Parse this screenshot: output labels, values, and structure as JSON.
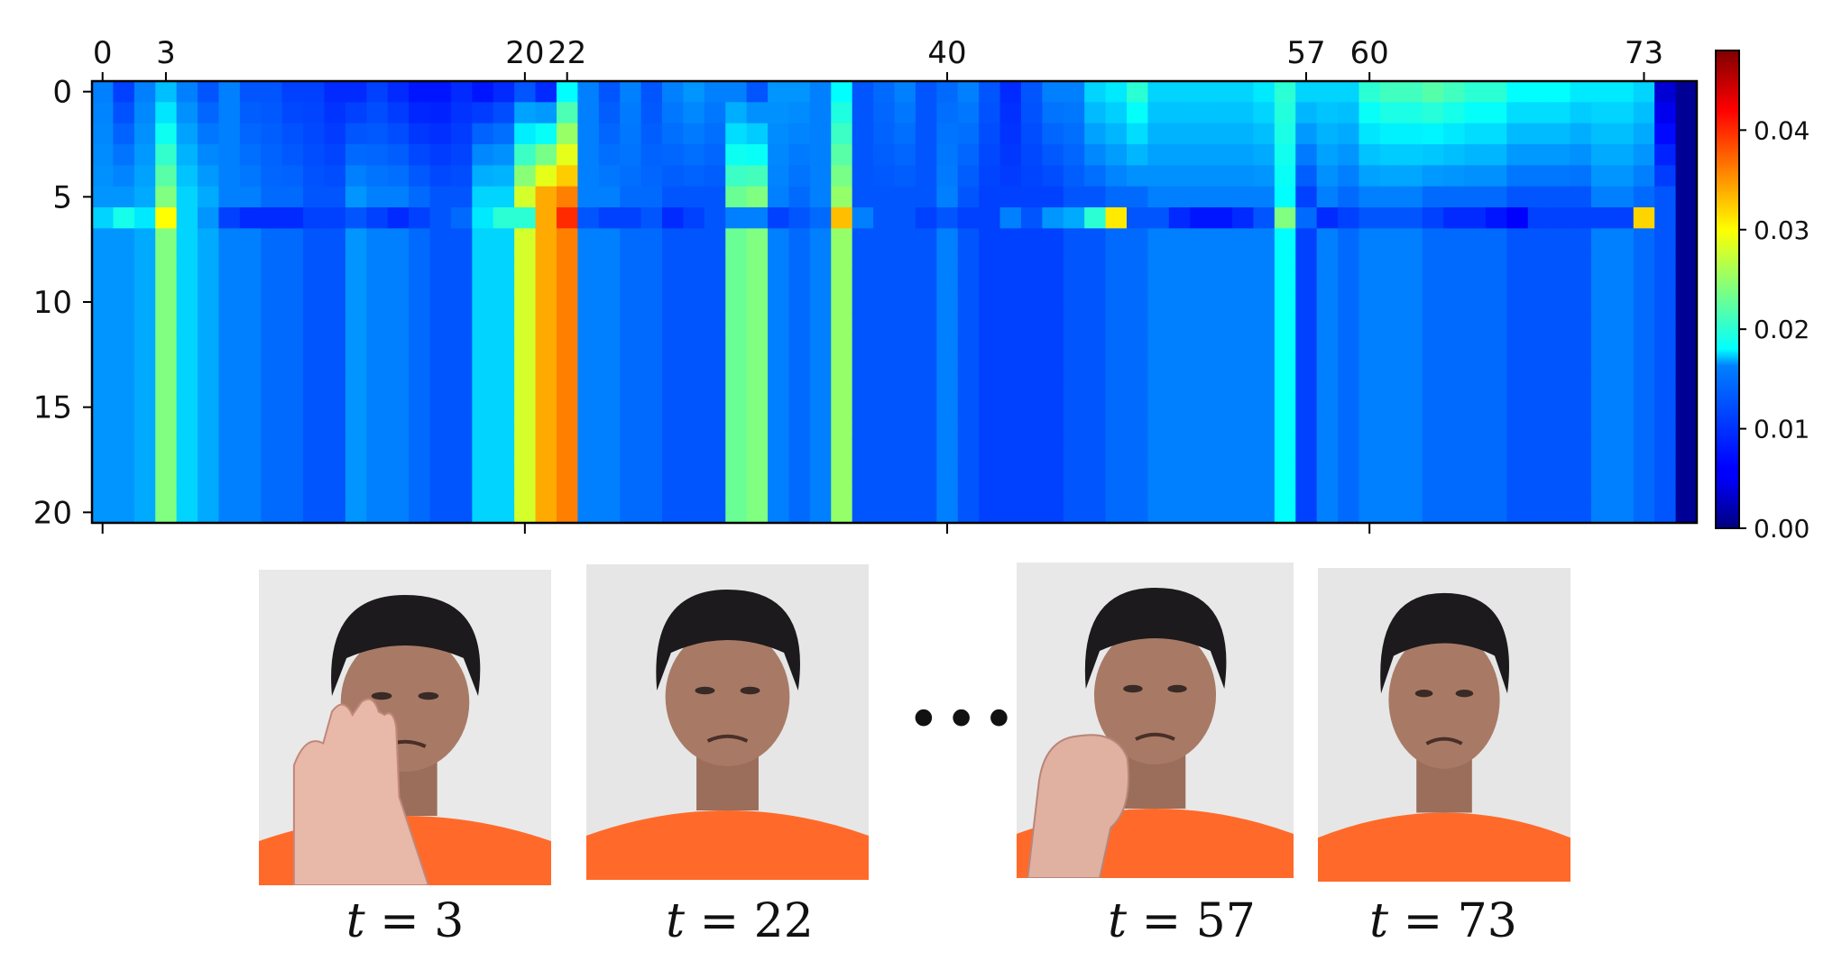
{
  "chart_data": {
    "type": "heatmap",
    "title": "",
    "xlabel": "",
    "ylabel": "",
    "n_cols": 76,
    "n_rows": 21,
    "x_ticks": [
      0,
      3,
      20,
      22,
      40,
      57,
      60,
      73
    ],
    "x_bottom_ticks": [
      0,
      20,
      40,
      60
    ],
    "y_ticks": [
      0,
      5,
      10,
      15,
      20
    ],
    "colormap": "jet",
    "colorbar": {
      "min": 0.0,
      "max": 0.048,
      "ticks": [
        0.0,
        0.01,
        0.02,
        0.03,
        0.04
      ],
      "tick_labels": [
        "0.00",
        "0.01",
        "0.02",
        "0.03",
        "0.04"
      ]
    },
    "description_rows": "rows 0-5 vary slightly, row 6 is a low band with peak spots, rows 7-20 equal column value",
    "column_values": [
      0.013,
      0.013,
      0.014,
      0.024,
      0.016,
      0.014,
      0.012,
      0.012,
      0.011,
      0.011,
      0.01,
      0.01,
      0.013,
      0.012,
      0.012,
      0.011,
      0.01,
      0.01,
      0.016,
      0.016,
      0.028,
      0.034,
      0.036,
      0.012,
      0.012,
      0.011,
      0.011,
      0.01,
      0.01,
      0.01,
      0.023,
      0.024,
      0.012,
      0.011,
      0.012,
      0.025,
      0.01,
      0.01,
      0.01,
      0.01,
      0.012,
      0.01,
      0.009,
      0.009,
      0.009,
      0.009,
      0.01,
      0.01,
      0.011,
      0.011,
      0.012,
      0.012,
      0.012,
      0.012,
      0.012,
      0.012,
      0.018,
      0.009,
      0.012,
      0.011,
      0.012,
      0.012,
      0.012,
      0.011,
      0.011,
      0.011,
      0.011,
      0.01,
      0.01,
      0.01,
      0.01,
      0.012,
      0.012,
      0.011,
      0.01,
      0.001
    ],
    "top_band_values": [
      0.012,
      0.009,
      0.012,
      0.015,
      0.012,
      0.01,
      0.012,
      0.01,
      0.01,
      0.009,
      0.009,
      0.008,
      0.008,
      0.009,
      0.008,
      0.007,
      0.007,
      0.008,
      0.007,
      0.008,
      0.01,
      0.008,
      0.018,
      0.012,
      0.01,
      0.012,
      0.01,
      0.012,
      0.013,
      0.012,
      0.012,
      0.01,
      0.013,
      0.013,
      0.012,
      0.018,
      0.01,
      0.011,
      0.012,
      0.01,
      0.011,
      0.012,
      0.01,
      0.008,
      0.01,
      0.012,
      0.012,
      0.016,
      0.017,
      0.02,
      0.016,
      0.016,
      0.016,
      0.016,
      0.016,
      0.017,
      0.02,
      0.016,
      0.016,
      0.016,
      0.02,
      0.021,
      0.021,
      0.022,
      0.021,
      0.02,
      0.02,
      0.018,
      0.018,
      0.018,
      0.017,
      0.017,
      0.017,
      0.016,
      0.004,
      0.001
    ],
    "row6_values": [
      0.016,
      0.019,
      0.017,
      0.03,
      0.016,
      0.013,
      0.009,
      0.008,
      0.008,
      0.008,
      0.009,
      0.009,
      0.01,
      0.009,
      0.008,
      0.009,
      0.01,
      0.011,
      0.017,
      0.02,
      0.02,
      0.034,
      0.04,
      0.01,
      0.009,
      0.009,
      0.01,
      0.008,
      0.009,
      0.01,
      0.012,
      0.012,
      0.009,
      0.01,
      0.011,
      0.033,
      0.012,
      0.01,
      0.01,
      0.009,
      0.01,
      0.009,
      0.009,
      0.012,
      0.01,
      0.013,
      0.014,
      0.02,
      0.031,
      0.01,
      0.01,
      0.008,
      0.007,
      0.007,
      0.008,
      0.01,
      0.024,
      0.011,
      0.008,
      0.009,
      0.01,
      0.01,
      0.01,
      0.009,
      0.008,
      0.008,
      0.007,
      0.006,
      0.009,
      0.009,
      0.009,
      0.009,
      0.009,
      0.032,
      0.01,
      0.001
    ]
  },
  "frames": [
    {
      "label": "t = 3",
      "tvar": "t",
      "eq": "= 3",
      "shirt": "#ff6a2a",
      "wall": "#e9e9e9",
      "hand": "open"
    },
    {
      "label": "t = 22",
      "tvar": "t",
      "eq": "= 22",
      "shirt": "#ff6a2a",
      "wall": "#e6e6e6",
      "hand": "none"
    },
    {
      "label": "t = 57",
      "tvar": "t",
      "eq": "= 57",
      "shirt": "#ff6a2a",
      "wall": "#e8e8e8",
      "hand": "fist"
    },
    {
      "label": "t = 73",
      "tvar": "t",
      "eq": "= 73",
      "shirt": "#ff6a2a",
      "wall": "#e6e6e6",
      "hand": "none"
    }
  ],
  "ellipsis": "•••"
}
